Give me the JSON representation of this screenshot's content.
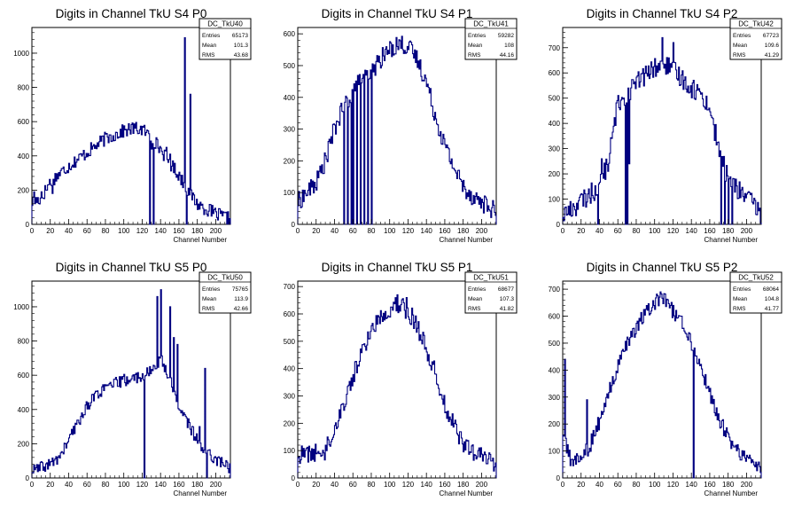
{
  "chart_data": [
    {
      "type": "bar",
      "title": "Digits in Channel TkU S4 P0",
      "xlabel": "Channel Number",
      "ylabel": "",
      "xlim": [
        0,
        216
      ],
      "ylim": [
        0,
        1150
      ],
      "xticks": [
        0,
        20,
        40,
        60,
        80,
        100,
        120,
        140,
        160,
        180,
        200
      ],
      "yticks": [
        200,
        400,
        600,
        800,
        1000
      ],
      "stats": {
        "name": "DC_TkU40",
        "rows": [
          {
            "label": "Entries",
            "value": "65173"
          },
          {
            "label": "Mean",
            "value": "101.3"
          },
          {
            "label": "RMS",
            "value": "43.68"
          }
        ]
      },
      "profile": [
        [
          0,
          130
        ],
        [
          10,
          150
        ],
        [
          20,
          250
        ],
        [
          40,
          340
        ],
        [
          60,
          420
        ],
        [
          80,
          500
        ],
        [
          100,
          545
        ],
        [
          110,
          560
        ],
        [
          120,
          555
        ],
        [
          130,
          510
        ],
        [
          140,
          440
        ],
        [
          150,
          360
        ],
        [
          160,
          290
        ],
        [
          170,
          200
        ],
        [
          180,
          120
        ],
        [
          200,
          60
        ],
        [
          216,
          30
        ]
      ],
      "noise": 40,
      "spikes": [
        [
          130,
          440
        ],
        [
          146,
          450
        ],
        [
          150,
          410
        ],
        [
          166,
          1090
        ],
        [
          172,
          760
        ],
        [
          2,
          190
        ],
        [
          10,
          190
        ],
        [
          22,
          180
        ]
      ],
      "dips": [
        [
          128,
          0
        ],
        [
          132,
          0
        ],
        [
          168,
          0
        ]
      ]
    },
    {
      "type": "bar",
      "title": "Digits in Channel TkU S4 P1",
      "xlabel": "Channel Number",
      "ylabel": "",
      "xlim": [
        0,
        216
      ],
      "ylim": [
        0,
        620
      ],
      "xticks": [
        0,
        20,
        40,
        60,
        80,
        100,
        120,
        140,
        160,
        180,
        200
      ],
      "yticks": [
        100,
        200,
        300,
        400,
        500,
        600
      ],
      "stats": {
        "name": "DC_TkU41",
        "rows": [
          {
            "label": "Entries",
            "value": "59282"
          },
          {
            "label": "Mean",
            "value": "108"
          },
          {
            "label": "RMS",
            "value": "44.16"
          }
        ]
      },
      "profile": [
        [
          0,
          70
        ],
        [
          10,
          100
        ],
        [
          20,
          130
        ],
        [
          30,
          200
        ],
        [
          40,
          300
        ],
        [
          50,
          370
        ],
        [
          60,
          420
        ],
        [
          70,
          460
        ],
        [
          80,
          480
        ],
        [
          90,
          520
        ],
        [
          100,
          550
        ],
        [
          110,
          570
        ],
        [
          120,
          560
        ],
        [
          130,
          520
        ],
        [
          140,
          450
        ],
        [
          150,
          340
        ],
        [
          160,
          250
        ],
        [
          170,
          180
        ],
        [
          180,
          120
        ],
        [
          190,
          90
        ],
        [
          200,
          70
        ],
        [
          216,
          40
        ]
      ],
      "noise": 30,
      "spikes": [
        [
          55,
          370
        ],
        [
          62,
          420
        ],
        [
          66,
          440
        ],
        [
          70,
          460
        ],
        [
          74,
          470
        ],
        [
          78,
          460
        ],
        [
          82,
          480
        ]
      ],
      "dips": [
        [
          50,
          0
        ],
        [
          54,
          0
        ],
        [
          58,
          0
        ],
        [
          60,
          0
        ],
        [
          64,
          0
        ],
        [
          68,
          0
        ],
        [
          72,
          0
        ],
        [
          76,
          0
        ],
        [
          80,
          0
        ]
      ]
    },
    {
      "type": "bar",
      "title": "Digits in Channel TkU S4 P2",
      "xlabel": "Channel Number",
      "ylabel": "",
      "xlim": [
        0,
        216
      ],
      "ylim": [
        0,
        780
      ],
      "xticks": [
        0,
        20,
        40,
        60,
        80,
        100,
        120,
        140,
        160,
        180,
        200
      ],
      "yticks": [
        100,
        200,
        300,
        400,
        500,
        600,
        700
      ],
      "stats": {
        "name": "DC_TkU42",
        "rows": [
          {
            "label": "Entries",
            "value": "67723"
          },
          {
            "label": "Mean",
            "value": "109.6"
          },
          {
            "label": "RMS",
            "value": "41.29"
          }
        ]
      },
      "profile": [
        [
          0,
          40
        ],
        [
          10,
          60
        ],
        [
          20,
          90
        ],
        [
          30,
          120
        ],
        [
          40,
          150
        ],
        [
          50,
          250
        ],
        [
          60,
          480
        ],
        [
          70,
          520
        ],
        [
          80,
          560
        ],
        [
          90,
          590
        ],
        [
          100,
          620
        ],
        [
          110,
          640
        ],
        [
          120,
          610
        ],
        [
          130,
          580
        ],
        [
          140,
          540
        ],
        [
          150,
          520
        ],
        [
          160,
          460
        ],
        [
          170,
          300
        ],
        [
          180,
          180
        ],
        [
          190,
          140
        ],
        [
          200,
          110
        ],
        [
          216,
          40
        ]
      ],
      "noise": 40,
      "spikes": [
        [
          42,
          260
        ],
        [
          72,
          240
        ],
        [
          108,
          740
        ],
        [
          120,
          720
        ],
        [
          174,
          230
        ]
      ],
      "dips": [
        [
          38,
          0
        ],
        [
          68,
          0
        ],
        [
          70,
          0
        ],
        [
          172,
          0
        ],
        [
          176,
          0
        ],
        [
          180,
          0
        ],
        [
          184,
          0
        ]
      ]
    },
    {
      "type": "bar",
      "title": "Digits in Channel TkU S5 P0",
      "xlabel": "Channel Number",
      "ylabel": "",
      "xlim": [
        0,
        216
      ],
      "ylim": [
        0,
        1150
      ],
      "xticks": [
        0,
        20,
        40,
        60,
        80,
        100,
        120,
        140,
        160,
        180,
        200
      ],
      "yticks": [
        200,
        400,
        600,
        800,
        1000
      ],
      "stats": {
        "name": "DC_TkU50",
        "rows": [
          {
            "label": "Entries",
            "value": "75765"
          },
          {
            "label": "Mean",
            "value": "113.9"
          },
          {
            "label": "RMS",
            "value": "42.66"
          }
        ]
      },
      "profile": [
        [
          0,
          40
        ],
        [
          10,
          60
        ],
        [
          20,
          80
        ],
        [
          30,
          120
        ],
        [
          40,
          220
        ],
        [
          50,
          320
        ],
        [
          60,
          420
        ],
        [
          70,
          490
        ],
        [
          80,
          520
        ],
        [
          90,
          550
        ],
        [
          100,
          570
        ],
        [
          110,
          580
        ],
        [
          120,
          600
        ],
        [
          130,
          620
        ],
        [
          140,
          700
        ],
        [
          150,
          580
        ],
        [
          160,
          420
        ],
        [
          170,
          320
        ],
        [
          180,
          220
        ],
        [
          190,
          160
        ],
        [
          200,
          110
        ],
        [
          216,
          60
        ]
      ],
      "noise": 35,
      "spikes": [
        [
          124,
          600
        ],
        [
          136,
          1060
        ],
        [
          140,
          1100
        ],
        [
          150,
          1000
        ],
        [
          154,
          820
        ],
        [
          158,
          780
        ],
        [
          188,
          640
        ],
        [
          182,
          300
        ]
      ],
      "dips": [
        [
          122,
          0
        ],
        [
          190,
          0
        ]
      ]
    },
    {
      "type": "bar",
      "title": "Digits in Channel TkU S5 P1",
      "xlabel": "Channel Number",
      "ylabel": "",
      "xlim": [
        0,
        216
      ],
      "ylim": [
        0,
        720
      ],
      "xticks": [
        0,
        20,
        40,
        60,
        80,
        100,
        120,
        140,
        160,
        180,
        200
      ],
      "yticks": [
        100,
        200,
        300,
        400,
        500,
        600,
        700
      ],
      "stats": {
        "name": "DC_TkU51",
        "rows": [
          {
            "label": "Entries",
            "value": "68677"
          },
          {
            "label": "Mean",
            "value": "107.3"
          },
          {
            "label": "RMS",
            "value": "41.82"
          }
        ]
      },
      "profile": [
        [
          0,
          80
        ],
        [
          10,
          90
        ],
        [
          20,
          90
        ],
        [
          30,
          100
        ],
        [
          40,
          180
        ],
        [
          50,
          270
        ],
        [
          60,
          370
        ],
        [
          70,
          460
        ],
        [
          80,
          540
        ],
        [
          90,
          590
        ],
        [
          100,
          620
        ],
        [
          110,
          640
        ],
        [
          120,
          610
        ],
        [
          130,
          560
        ],
        [
          140,
          470
        ],
        [
          150,
          380
        ],
        [
          160,
          270
        ],
        [
          170,
          190
        ],
        [
          180,
          130
        ],
        [
          190,
          90
        ],
        [
          200,
          80
        ],
        [
          216,
          50
        ]
      ],
      "noise": 35,
      "spikes": [
        [
          108,
          670
        ],
        [
          118,
          660
        ]
      ],
      "dips": []
    },
    {
      "type": "bar",
      "title": "Digits in Channel TkU S5 P2",
      "xlabel": "Channel Number",
      "ylabel": "",
      "xlim": [
        0,
        216
      ],
      "ylim": [
        0,
        730
      ],
      "xticks": [
        0,
        20,
        40,
        60,
        80,
        100,
        120,
        140,
        160,
        180,
        200
      ],
      "yticks": [
        100,
        200,
        300,
        400,
        500,
        600,
        700
      ],
      "stats": {
        "name": "DC_TkU52",
        "rows": [
          {
            "label": "Entries",
            "value": "68064"
          },
          {
            "label": "Mean",
            "value": "104.8"
          },
          {
            "label": "RMS",
            "value": "41.77"
          }
        ]
      },
      "profile": [
        [
          0,
          170
        ],
        [
          4,
          110
        ],
        [
          10,
          60
        ],
        [
          20,
          80
        ],
        [
          30,
          120
        ],
        [
          40,
          210
        ],
        [
          50,
          310
        ],
        [
          60,
          410
        ],
        [
          70,
          490
        ],
        [
          80,
          560
        ],
        [
          90,
          610
        ],
        [
          100,
          650
        ],
        [
          110,
          660
        ],
        [
          120,
          620
        ],
        [
          130,
          580
        ],
        [
          140,
          500
        ],
        [
          150,
          420
        ],
        [
          160,
          310
        ],
        [
          170,
          220
        ],
        [
          180,
          150
        ],
        [
          190,
          100
        ],
        [
          200,
          80
        ],
        [
          216,
          30
        ]
      ],
      "noise": 30,
      "spikes": [
        [
          2,
          440
        ],
        [
          106,
          690
        ],
        [
          26,
          290
        ]
      ],
      "dips": [
        [
          142,
          0
        ]
      ]
    }
  ]
}
